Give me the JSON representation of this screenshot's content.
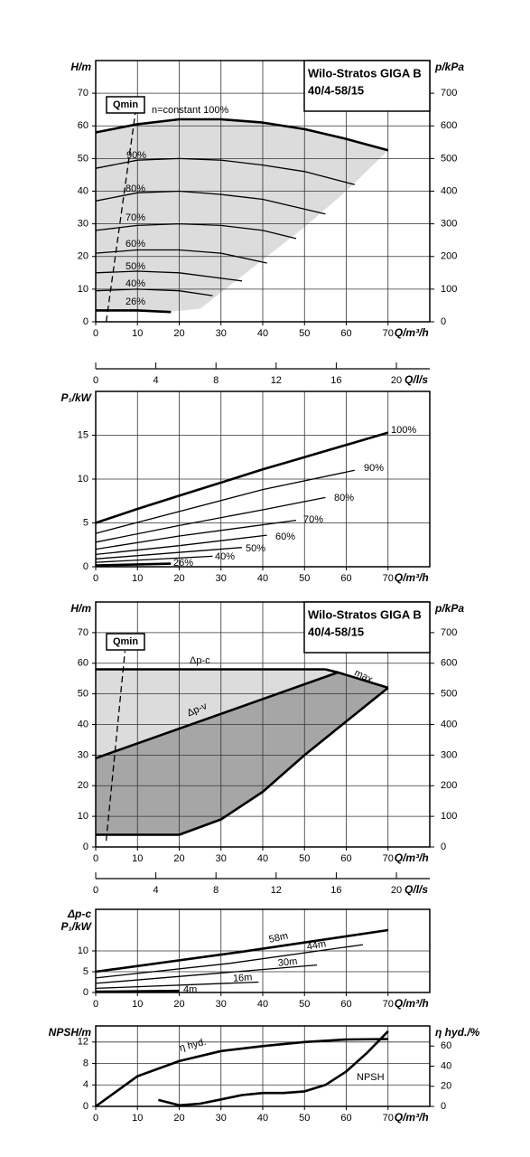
{
  "chart_data": [
    {
      "type": "line",
      "title": [
        "Wilo-Stratos GIGA B",
        "40/4-58/15"
      ],
      "ylabel": "H/m",
      "y2label": "p/kPa",
      "xlabel": "Q/m³/h",
      "x2label": "Q/l/s",
      "xlim": [
        0,
        80
      ],
      "xticks": [
        0,
        10,
        20,
        30,
        40,
        50,
        60,
        70
      ],
      "ylim": [
        0,
        80
      ],
      "yticks": [
        0,
        10,
        20,
        30,
        40,
        50,
        60,
        70
      ],
      "y2lim": [
        0,
        800
      ],
      "y2ticks": [
        0,
        100,
        200,
        300,
        400,
        500,
        600,
        700
      ],
      "x2lim": [
        0,
        22.22
      ],
      "x2ticks": [
        0,
        4,
        8,
        12,
        16,
        20
      ],
      "grid": true,
      "areas": [
        {
          "color": "#dcdcdc",
          "x": [
            0,
            10,
            20,
            30,
            40,
            50,
            60,
            70,
            60,
            50,
            40,
            30,
            25,
            17,
            0
          ],
          "y": [
            58,
            60.5,
            62,
            62,
            61,
            59,
            56,
            52.5,
            40,
            29,
            19,
            9,
            4,
            3,
            3.5
          ]
        }
      ],
      "series": [
        {
          "name": "n=constant 100%",
          "color": "#000000",
          "bold": true,
          "x": [
            0,
            10,
            20,
            30,
            40,
            50,
            60,
            70
          ],
          "values": [
            58,
            60.5,
            62,
            62,
            61,
            59,
            56,
            52.5
          ]
        },
        {
          "name": "90%",
          "color": "#000000",
          "x": [
            0,
            10,
            20,
            30,
            40,
            50,
            62
          ],
          "values": [
            47,
            49.5,
            50,
            49.5,
            48,
            46,
            42
          ]
        },
        {
          "name": "80%",
          "color": "#000000",
          "x": [
            0,
            10,
            20,
            30,
            40,
            55
          ],
          "values": [
            37,
            39.5,
            40,
            39,
            37.5,
            33
          ]
        },
        {
          "name": "70%",
          "color": "#000000",
          "x": [
            0,
            10,
            20,
            30,
            40,
            48
          ],
          "values": [
            28,
            29.5,
            30,
            29.5,
            28,
            25.5
          ]
        },
        {
          "name": "60%",
          "color": "#000000",
          "x": [
            0,
            10,
            20,
            30,
            41
          ],
          "values": [
            21,
            22,
            22,
            21,
            18
          ]
        },
        {
          "name": "50%",
          "color": "#000000",
          "x": [
            0,
            10,
            20,
            35
          ],
          "values": [
            15,
            15.5,
            15,
            12.5
          ]
        },
        {
          "name": "40%",
          "color": "#000000",
          "x": [
            0,
            10,
            20,
            28
          ],
          "values": [
            9.5,
            10,
            9.5,
            8
          ]
        },
        {
          "name": "26%",
          "color": "#000000",
          "bold": true,
          "x": [
            0,
            10,
            18
          ],
          "values": [
            3.5,
            3.5,
            3
          ]
        },
        {
          "name": "Qmin",
          "color": "#000000",
          "dashed": true,
          "x": [
            2.5,
            9.5
          ],
          "values": [
            0,
            64
          ]
        }
      ]
    },
    {
      "type": "line",
      "ylabel": "P₁/kW",
      "xlabel": "Q/m³/h",
      "xlim": [
        0,
        80
      ],
      "xticks": [
        0,
        10,
        20,
        30,
        40,
        50,
        60,
        70
      ],
      "ylim": [
        0,
        20
      ],
      "yticks": [
        0,
        5,
        10,
        15
      ],
      "grid": true,
      "series": [
        {
          "name": "100%",
          "color": "#000000",
          "bold": true,
          "x": [
            0,
            10,
            20,
            30,
            40,
            50,
            60,
            70
          ],
          "values": [
            5,
            6.6,
            8.1,
            9.6,
            11.1,
            12.5,
            13.9,
            15.3
          ]
        },
        {
          "name": "90%",
          "color": "#000000",
          "x": [
            0,
            20,
            40,
            62
          ],
          "values": [
            3.8,
            6.3,
            8.8,
            11
          ]
        },
        {
          "name": "80%",
          "color": "#000000",
          "x": [
            0,
            20,
            40,
            55
          ],
          "values": [
            2.8,
            4.7,
            6.5,
            7.9
          ]
        },
        {
          "name": "70%",
          "color": "#000000",
          "x": [
            0,
            20,
            48
          ],
          "values": [
            2,
            3.5,
            5.3
          ]
        },
        {
          "name": "60%",
          "color": "#000000",
          "x": [
            0,
            20,
            41
          ],
          "values": [
            1.4,
            2.4,
            3.6
          ]
        },
        {
          "name": "50%",
          "color": "#000000",
          "x": [
            0,
            35
          ],
          "values": [
            0.9,
            2.2
          ]
        },
        {
          "name": "40%",
          "color": "#000000",
          "x": [
            0,
            28
          ],
          "values": [
            0.5,
            1.2
          ]
        },
        {
          "name": "26%",
          "color": "#000000",
          "bold": true,
          "x": [
            0,
            18
          ],
          "values": [
            0.15,
            0.35
          ]
        }
      ]
    },
    {
      "type": "line",
      "title": [
        "Wilo-Stratos GIGA B",
        "40/4-58/15"
      ],
      "ylabel": "H/m",
      "y2label": "p/kPa",
      "xlabel": "Q/m³/h",
      "x2label": "Q/l/s",
      "xlim": [
        0,
        80
      ],
      "xticks": [
        0,
        10,
        20,
        30,
        40,
        50,
        60,
        70
      ],
      "ylim": [
        0,
        80
      ],
      "yticks": [
        0,
        10,
        20,
        30,
        40,
        50,
        60,
        70
      ],
      "y2lim": [
        0,
        800
      ],
      "y2ticks": [
        0,
        100,
        200,
        300,
        400,
        500,
        600,
        700
      ],
      "x2lim": [
        0,
        22.22
      ],
      "x2ticks": [
        0,
        4,
        8,
        12,
        16,
        20
      ],
      "grid": true,
      "areas": [
        {
          "color": "#dcdcdc",
          "x": [
            0,
            55,
            58,
            0
          ],
          "y": [
            58,
            58,
            57,
            29
          ]
        },
        {
          "color": "#a6a6a6",
          "x": [
            0,
            58,
            70,
            60,
            50,
            40,
            30,
            20,
            0
          ],
          "y": [
            29,
            57,
            52,
            41,
            30,
            18,
            9,
            4,
            4
          ]
        }
      ],
      "series": [
        {
          "name": "Δp-c",
          "color": "#000000",
          "bold": true,
          "x": [
            0,
            55
          ],
          "values": [
            58,
            58
          ]
        },
        {
          "name": "max.",
          "color": "#000000",
          "bold": true,
          "x": [
            55,
            58,
            70
          ],
          "values": [
            58,
            57,
            52
          ]
        },
        {
          "name": "Δp-v",
          "color": "#000000",
          "bold": true,
          "x": [
            0,
            58
          ],
          "values": [
            29,
            57
          ]
        },
        {
          "color": "#000000",
          "bold": true,
          "x": [
            0,
            20,
            30,
            40,
            50,
            60,
            70
          ],
          "values": [
            4,
            4,
            9,
            18,
            30,
            41,
            52
          ]
        },
        {
          "name": "Qmin",
          "color": "#000000",
          "dashed": true,
          "x": [
            2.5,
            7
          ],
          "values": [
            2,
            64
          ]
        }
      ]
    },
    {
      "type": "line",
      "subtitle": "Δp-c",
      "ylabel": "P₁/kW",
      "xlabel": "Q/m³/h",
      "xlim": [
        0,
        80
      ],
      "xticks": [
        0,
        10,
        20,
        30,
        40,
        50,
        60,
        70
      ],
      "ylim": [
        0,
        20
      ],
      "yticks": [
        0,
        5,
        10
      ],
      "grid": true,
      "series": [
        {
          "name": "58m",
          "color": "#000000",
          "bold": true,
          "x": [
            0,
            35,
            70
          ],
          "values": [
            5,
            9.8,
            15
          ]
        },
        {
          "name": "44m",
          "color": "#000000",
          "x": [
            0,
            32,
            64
          ],
          "values": [
            3.5,
            7,
            11.5
          ]
        },
        {
          "name": "30m",
          "color": "#000000",
          "x": [
            0,
            53
          ],
          "values": [
            2.2,
            6.6
          ]
        },
        {
          "name": "16m",
          "color": "#000000",
          "x": [
            0,
            39
          ],
          "values": [
            1,
            2.5
          ]
        },
        {
          "name": "4m",
          "color": "#000000",
          "bold": true,
          "x": [
            0,
            20
          ],
          "values": [
            0.2,
            0.4
          ]
        }
      ]
    },
    {
      "type": "line",
      "ylabel": "NPSH/m",
      "y2label": "η hyd./%",
      "xlabel": "Q/m³/h",
      "xlim": [
        0,
        80
      ],
      "xticks": [
        0,
        10,
        20,
        30,
        40,
        50,
        60,
        70
      ],
      "ylim": [
        0,
        15
      ],
      "yticks": [
        0,
        4,
        8,
        12
      ],
      "y2lim": [
        0,
        80
      ],
      "y2ticks": [
        0,
        20,
        40,
        60
      ],
      "grid": true,
      "series": [
        {
          "name": "η hyd.",
          "color": "#000000",
          "bold": true,
          "axis": "y2",
          "x": [
            0,
            10,
            20,
            30,
            40,
            50,
            60,
            70
          ],
          "values": [
            0,
            30,
            45,
            55,
            60,
            64,
            66.5,
            67
          ]
        },
        {
          "name": "NPSH",
          "color": "#000000",
          "bold": true,
          "x": [
            15,
            20,
            25,
            30,
            35,
            40,
            45,
            50,
            55,
            60,
            65,
            70
          ],
          "values": [
            1.2,
            0.2,
            0.5,
            1.3,
            2.1,
            2.5,
            2.5,
            2.8,
            4,
            6.5,
            10,
            14
          ]
        }
      ]
    }
  ]
}
